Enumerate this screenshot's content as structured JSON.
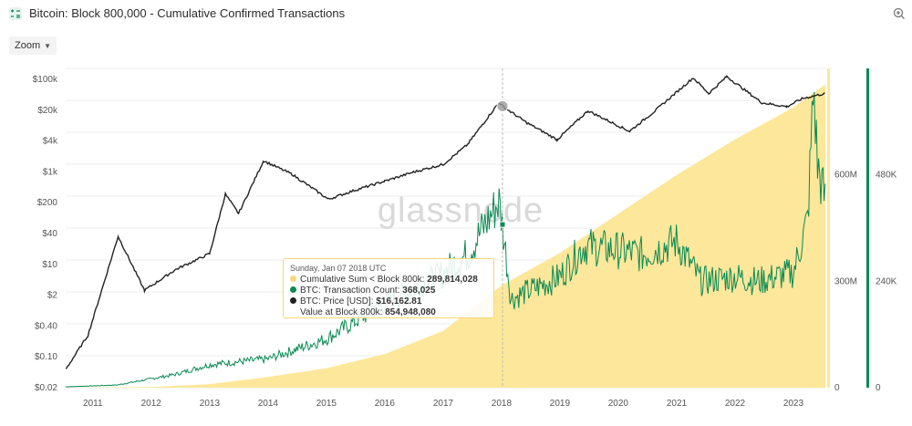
{
  "header": {
    "title": "Bitcoin: Block 800,000 - Cumulative Confirmed Transactions",
    "app_icon": "chart-app-icon",
    "zoom_icon": "zoom-in-icon"
  },
  "toolbar": {
    "zoom_label": "Zoom"
  },
  "watermark": "glassnode",
  "colors": {
    "price": "#222222",
    "tx": "#0a8a55",
    "cumulative": "#fde79a",
    "cumulative_dot": "#f8d877"
  },
  "tooltip": {
    "date": "Sunday, Jan 07 2018 UTC",
    "rows": [
      {
        "label": "Cumulative Sum < Block 800k:",
        "value": "289,814,028"
      },
      {
        "label": "BTC: Transaction Count:",
        "value": "368,025"
      },
      {
        "label": "BTC: Price [USD]:",
        "value": "$16,162.81"
      },
      {
        "label": "Value at Block 800k:",
        "value": "854,948,080"
      }
    ]
  },
  "chart_data": {
    "type": "line",
    "title": "Bitcoin: Block 800,000 - Cumulative Confirmed Transactions",
    "x_ticks": [
      "2011",
      "2012",
      "2013",
      "2014",
      "2015",
      "2016",
      "2017",
      "2018",
      "2019",
      "2020",
      "2021",
      "2022",
      "2023"
    ],
    "y_price_ticks": [
      "$100k",
      "$20k",
      "$4k",
      "$1k",
      "$200",
      "$40",
      "$10",
      "$2",
      "$0.40",
      "$0.10",
      "$0.02"
    ],
    "y_price_scale": "log",
    "y_cumulative_ticks": [
      "600M",
      "300M",
      "0"
    ],
    "y_cumulative_range": [
      0,
      900000000
    ],
    "y_tx_ticks": [
      "480K",
      "240K",
      "0"
    ],
    "y_tx_range": [
      0,
      720000
    ],
    "series": [
      {
        "name": "Cumulative Sum < Block 800k",
        "kind": "area",
        "x": [
          "2010-07-15",
          "2012-01-01",
          "2013-01-01",
          "2014-01-01",
          "2015-01-01",
          "2016-01-01",
          "2017-01-01",
          "2018-01-07",
          "2019-01-01",
          "2020-01-01",
          "2021-01-01",
          "2022-01-01",
          "2023-01-01",
          "2023-07-20"
        ],
        "values": [
          0,
          2000000,
          10000000,
          30000000,
          55000000,
          95000000,
          160000000,
          289814028,
          380000000,
          490000000,
          600000000,
          700000000,
          790000000,
          854948080
        ]
      },
      {
        "name": "BTC: Transaction Count",
        "kind": "line",
        "x": [
          "2010-07-15",
          "2011-06-01",
          "2012-06-01",
          "2013-01-01",
          "2014-01-01",
          "2015-01-01",
          "2016-01-01",
          "2016-12-01",
          "2017-06-01",
          "2017-12-15",
          "2018-01-07",
          "2018-03-01",
          "2018-07-01",
          "2019-01-01",
          "2019-06-01",
          "2020-01-01",
          "2020-06-01",
          "2021-01-01",
          "2021-06-01",
          "2022-01-01",
          "2022-06-01",
          "2023-01-01",
          "2023-04-01",
          "2023-05-08",
          "2023-06-01",
          "2023-07-20"
        ],
        "values": [
          2000,
          6000,
          30000,
          52000,
          65000,
          110000,
          190000,
          250000,
          300000,
          420000,
          368025,
          200000,
          220000,
          250000,
          320000,
          310000,
          300000,
          330000,
          240000,
          250000,
          240000,
          260000,
          380000,
          680000,
          500000,
          420000
        ]
      },
      {
        "name": "BTC: Price [USD]",
        "kind": "line",
        "x": [
          "2010-07-18",
          "2010-12-01",
          "2011-06-08",
          "2011-11-20",
          "2012-06-01",
          "2013-01-01",
          "2013-04-09",
          "2013-07-01",
          "2013-12-04",
          "2014-06-01",
          "2015-01-14",
          "2015-07-01",
          "2016-01-01",
          "2016-07-01",
          "2017-01-01",
          "2017-06-01",
          "2017-12-17",
          "2018-01-07",
          "2018-06-01",
          "2018-12-15",
          "2019-06-26",
          "2020-03-12",
          "2020-08-01",
          "2021-04-14",
          "2021-07-20",
          "2021-11-10",
          "2022-06-18",
          "2022-11-21",
          "2023-03-01",
          "2023-07-20"
        ],
        "values": [
          0.05,
          0.25,
          30,
          2.2,
          6,
          13,
          230,
          90,
          1150,
          600,
          180,
          280,
          430,
          670,
          970,
          2500,
          19500,
          16162.81,
          7500,
          3200,
          12900,
          4800,
          11500,
          63500,
          29800,
          67500,
          19000,
          15800,
          23500,
          29900
        ]
      }
    ],
    "annotation": {
      "x": "2018-01-07",
      "label": "Sunday, Jan 07 2018 UTC"
    }
  }
}
